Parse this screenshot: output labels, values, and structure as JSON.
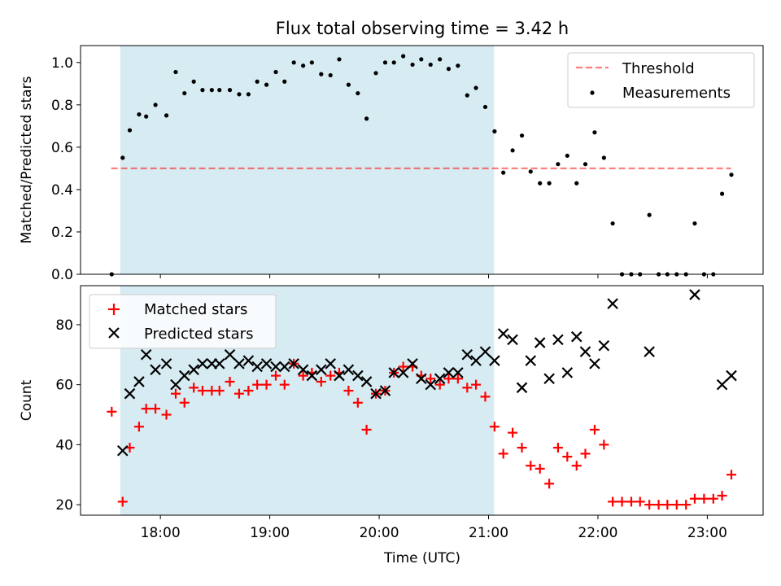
{
  "title": "Flux total observing time = 3.42 h",
  "xlabel": "Time (UTC)",
  "x_ticks": [
    "18:00",
    "19:00",
    "20:00",
    "21:00",
    "22:00",
    "23:00"
  ],
  "colors": {
    "shade": "#add8e6",
    "threshold": "#ff0000",
    "measurements": "#000000",
    "matched": "#ff0000",
    "predicted": "#000000"
  },
  "chart_data": [
    {
      "type": "scatter",
      "panel": "top",
      "ylabel": "Matched/Predicted stars",
      "ylim": [
        0,
        1.08
      ],
      "y_ticks": [
        "0.0",
        "0.2",
        "0.4",
        "0.6",
        "0.8",
        "1.0"
      ],
      "x_unit": "hours UTC",
      "shaded_interval": [
        "17:38",
        "21:03"
      ],
      "legend": {
        "placement": "upper right",
        "entries": [
          "Threshold",
          "Measurements"
        ]
      },
      "threshold": {
        "name": "Threshold",
        "value": 0.5,
        "x_range": [
          "17:33",
          "23:13"
        ],
        "style": "dashed"
      },
      "series": [
        {
          "name": "Measurements",
          "marker": "dot",
          "points": [
            [
              17.555,
              0.0
            ],
            [
              17.655,
              0.55
            ],
            [
              17.72,
              0.68
            ],
            [
              17.805,
              0.755
            ],
            [
              17.87,
              0.745
            ],
            [
              17.955,
              0.8
            ],
            [
              18.055,
              0.75
            ],
            [
              18.14,
              0.955
            ],
            [
              18.22,
              0.855
            ],
            [
              18.305,
              0.91
            ],
            [
              18.385,
              0.87
            ],
            [
              18.47,
              0.87
            ],
            [
              18.54,
              0.87
            ],
            [
              18.635,
              0.87
            ],
            [
              18.72,
              0.85
            ],
            [
              18.805,
              0.85
            ],
            [
              18.885,
              0.91
            ],
            [
              18.97,
              0.895
            ],
            [
              19.055,
              0.955
            ],
            [
              19.135,
              0.91
            ],
            [
              19.22,
              1.0
            ],
            [
              19.305,
              0.985
            ],
            [
              19.385,
              1.0
            ],
            [
              19.47,
              0.945
            ],
            [
              19.555,
              0.94
            ],
            [
              19.635,
              1.015
            ],
            [
              19.72,
              0.895
            ],
            [
              19.805,
              0.855
            ],
            [
              19.885,
              0.735
            ],
            [
              19.97,
              0.95
            ],
            [
              20.055,
              1.0
            ],
            [
              20.135,
              1.0
            ],
            [
              20.22,
              1.03
            ],
            [
              20.305,
              0.99
            ],
            [
              20.385,
              1.015
            ],
            [
              20.47,
              0.99
            ],
            [
              20.555,
              1.015
            ],
            [
              20.635,
              0.97
            ],
            [
              20.72,
              0.985
            ],
            [
              20.805,
              0.845
            ],
            [
              20.885,
              0.88
            ],
            [
              20.97,
              0.79
            ],
            [
              21.055,
              0.675
            ],
            [
              21.135,
              0.48
            ],
            [
              21.22,
              0.585
            ],
            [
              21.305,
              0.655
            ],
            [
              21.385,
              0.485
            ],
            [
              21.47,
              0.43
            ],
            [
              21.555,
              0.43
            ],
            [
              21.635,
              0.52
            ],
            [
              21.72,
              0.56
            ],
            [
              21.805,
              0.43
            ],
            [
              21.885,
              0.52
            ],
            [
              21.97,
              0.67
            ],
            [
              22.055,
              0.55
            ],
            [
              22.135,
              0.24
            ],
            [
              22.22,
              0.0
            ],
            [
              22.305,
              0.0
            ],
            [
              22.385,
              0.0
            ],
            [
              22.47,
              0.28
            ],
            [
              22.555,
              0.0
            ],
            [
              22.635,
              0.0
            ],
            [
              22.72,
              0.0
            ],
            [
              22.805,
              0.0
            ],
            [
              22.885,
              0.24
            ],
            [
              22.97,
              0.0
            ],
            [
              23.055,
              0.0
            ],
            [
              23.135,
              0.38
            ],
            [
              23.22,
              0.47
            ]
          ]
        }
      ]
    },
    {
      "type": "scatter",
      "panel": "bottom",
      "ylabel": "Count",
      "ylim": [
        16.5,
        93
      ],
      "y_ticks": [
        "20",
        "40",
        "60",
        "80"
      ],
      "x_unit": "hours UTC",
      "shaded_interval": [
        "17:38",
        "21:03"
      ],
      "legend": {
        "placement": "upper left",
        "entries": [
          "Matched stars",
          "Predicted stars"
        ]
      },
      "series": [
        {
          "name": "Matched stars",
          "marker": "plus",
          "points": [
            [
              17.555,
              51
            ],
            [
              17.655,
              21
            ],
            [
              17.72,
              39
            ],
            [
              17.805,
              46
            ],
            [
              17.87,
              52
            ],
            [
              17.955,
              52
            ],
            [
              18.055,
              50
            ],
            [
              18.14,
              57
            ],
            [
              18.22,
              54
            ],
            [
              18.305,
              59
            ],
            [
              18.385,
              58
            ],
            [
              18.47,
              58
            ],
            [
              18.54,
              58
            ],
            [
              18.635,
              61
            ],
            [
              18.72,
              57
            ],
            [
              18.805,
              58
            ],
            [
              18.885,
              60
            ],
            [
              18.97,
              60
            ],
            [
              19.055,
              63
            ],
            [
              19.135,
              60
            ],
            [
              19.22,
              67
            ],
            [
              19.305,
              63
            ],
            [
              19.385,
              64
            ],
            [
              19.47,
              61
            ],
            [
              19.555,
              63
            ],
            [
              19.635,
              64
            ],
            [
              19.72,
              58
            ],
            [
              19.805,
              54
            ],
            [
              19.885,
              45
            ],
            [
              19.97,
              57
            ],
            [
              20.055,
              58
            ],
            [
              20.135,
              64
            ],
            [
              20.22,
              66
            ],
            [
              20.305,
              66
            ],
            [
              20.385,
              63
            ],
            [
              20.47,
              62
            ],
            [
              20.555,
              60
            ],
            [
              20.635,
              62
            ],
            [
              20.72,
              62
            ],
            [
              20.805,
              59
            ],
            [
              20.885,
              60
            ],
            [
              20.97,
              56
            ],
            [
              21.055,
              46
            ],
            [
              21.135,
              37
            ],
            [
              21.22,
              44
            ],
            [
              21.305,
              39
            ],
            [
              21.385,
              33
            ],
            [
              21.47,
              32
            ],
            [
              21.555,
              27
            ],
            [
              21.635,
              39
            ],
            [
              21.72,
              36
            ],
            [
              21.805,
              33
            ],
            [
              21.885,
              37
            ],
            [
              21.97,
              45
            ],
            [
              22.055,
              40
            ],
            [
              22.135,
              21
            ],
            [
              22.22,
              21
            ],
            [
              22.305,
              21
            ],
            [
              22.385,
              21
            ],
            [
              22.47,
              20
            ],
            [
              22.555,
              20
            ],
            [
              22.635,
              20
            ],
            [
              22.72,
              20
            ],
            [
              22.805,
              20
            ],
            [
              22.885,
              22
            ],
            [
              22.97,
              22
            ],
            [
              23.055,
              22
            ],
            [
              23.135,
              23
            ],
            [
              23.22,
              30
            ]
          ]
        },
        {
          "name": "Predicted stars",
          "marker": "x",
          "points": [
            [
              17.655,
              38
            ],
            [
              17.72,
              57
            ],
            [
              17.805,
              61
            ],
            [
              17.87,
              70
            ],
            [
              17.955,
              65
            ],
            [
              18.055,
              67
            ],
            [
              18.14,
              60
            ],
            [
              18.22,
              63
            ],
            [
              18.305,
              65
            ],
            [
              18.385,
              67
            ],
            [
              18.47,
              67
            ],
            [
              18.54,
              67
            ],
            [
              18.635,
              70
            ],
            [
              18.72,
              67
            ],
            [
              18.805,
              68
            ],
            [
              18.885,
              66
            ],
            [
              18.97,
              67
            ],
            [
              19.055,
              66
            ],
            [
              19.135,
              66
            ],
            [
              19.22,
              67
            ],
            [
              19.305,
              65
            ],
            [
              19.385,
              63
            ],
            [
              19.47,
              65
            ],
            [
              19.555,
              67
            ],
            [
              19.635,
              63
            ],
            [
              19.72,
              65
            ],
            [
              19.805,
              63
            ],
            [
              19.885,
              61
            ],
            [
              19.97,
              57
            ],
            [
              20.055,
              58
            ],
            [
              20.135,
              64
            ],
            [
              20.22,
              64
            ],
            [
              20.305,
              67
            ],
            [
              20.385,
              62
            ],
            [
              20.47,
              60
            ],
            [
              20.555,
              62
            ],
            [
              20.635,
              64
            ],
            [
              20.72,
              64
            ],
            [
              20.805,
              70
            ],
            [
              20.885,
              68
            ],
            [
              20.97,
              71
            ],
            [
              21.055,
              68
            ],
            [
              21.135,
              77
            ],
            [
              21.22,
              75
            ],
            [
              21.305,
              59
            ],
            [
              21.385,
              68
            ],
            [
              21.47,
              74
            ],
            [
              21.555,
              62
            ],
            [
              21.635,
              75
            ],
            [
              21.72,
              64
            ],
            [
              21.805,
              76
            ],
            [
              21.885,
              71
            ],
            [
              21.97,
              67
            ],
            [
              22.055,
              73
            ],
            [
              22.135,
              87
            ],
            [
              22.47,
              71
            ],
            [
              22.885,
              90
            ],
            [
              23.135,
              60
            ],
            [
              23.22,
              63
            ]
          ]
        }
      ]
    }
  ]
}
